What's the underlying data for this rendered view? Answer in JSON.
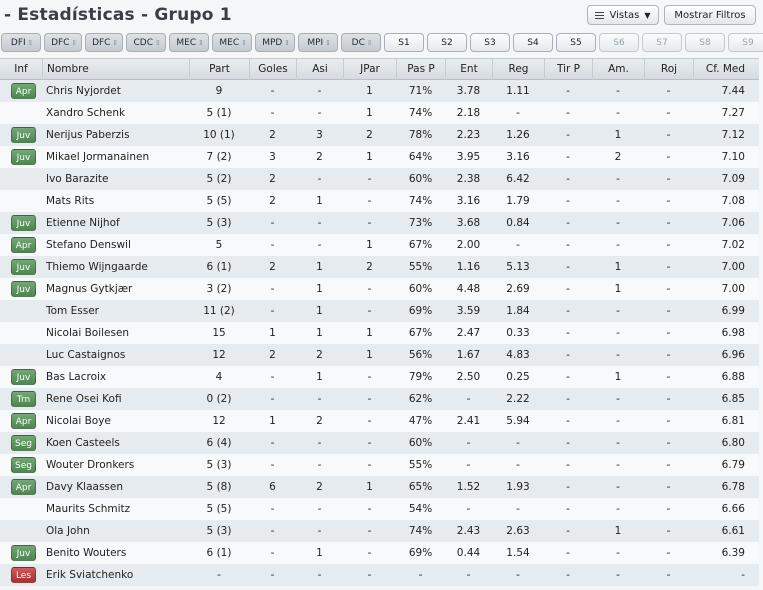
{
  "header": {
    "title": "- Estadísticas - Grupo 1",
    "views_label": "Vistas",
    "filters_label": "Mostrar Filtros"
  },
  "position_chips": [
    "DFI",
    "DFC",
    "DFC",
    "CDC",
    "MEC",
    "MEC",
    "MPD",
    "MPI",
    "DC"
  ],
  "stat_chips": [
    {
      "label": "S1",
      "dim": false
    },
    {
      "label": "S2",
      "dim": false
    },
    {
      "label": "S3",
      "dim": false
    },
    {
      "label": "S4",
      "dim": false
    },
    {
      "label": "S5",
      "dim": false
    },
    {
      "label": "S6",
      "dim": true
    },
    {
      "label": "S7",
      "dim": true
    },
    {
      "label": "S8",
      "dim": true
    },
    {
      "label": "S9",
      "dim": true
    }
  ],
  "columns": [
    "Inf",
    "Nombre",
    "Part",
    "Goles",
    "Asi",
    "JPar",
    "Pas P",
    "Ent",
    "Reg",
    "Tir P",
    "Am.",
    "Roj",
    "Cf. Med"
  ],
  "badge_colors": {
    "green": "#5a8f5c",
    "red": "#b83c3c"
  },
  "rows": [
    {
      "badge": "Apr",
      "badge_color": "green",
      "name": "Chris Nyjordet",
      "part": "9",
      "goles": "-",
      "asi": "-",
      "jpar": "1",
      "pas": "71%",
      "ent": "3.78",
      "reg": "1.11",
      "tir": "-",
      "am": "-",
      "roj": "-",
      "cf": "7.44"
    },
    {
      "badge": "",
      "badge_color": "",
      "name": "Xandro Schenk",
      "part": "5 (1)",
      "goles": "-",
      "asi": "-",
      "jpar": "1",
      "pas": "74%",
      "ent": "2.18",
      "reg": "-",
      "tir": "-",
      "am": "-",
      "roj": "-",
      "cf": "7.27"
    },
    {
      "badge": "Juv",
      "badge_color": "green",
      "name": "Nerijus Paberzis",
      "part": "10 (1)",
      "goles": "2",
      "asi": "3",
      "jpar": "2",
      "pas": "78%",
      "ent": "2.23",
      "reg": "1.26",
      "tir": "-",
      "am": "1",
      "roj": "-",
      "cf": "7.12"
    },
    {
      "badge": "Juv",
      "badge_color": "green",
      "name": "Mikael Jormanainen",
      "part": "7 (2)",
      "goles": "3",
      "asi": "2",
      "jpar": "1",
      "pas": "64%",
      "ent": "3.95",
      "reg": "3.16",
      "tir": "-",
      "am": "2",
      "roj": "-",
      "cf": "7.10"
    },
    {
      "badge": "",
      "badge_color": "",
      "name": "Ivo Barazite",
      "part": "5 (2)",
      "goles": "2",
      "asi": "-",
      "jpar": "-",
      "pas": "60%",
      "ent": "2.38",
      "reg": "6.42",
      "tir": "-",
      "am": "-",
      "roj": "-",
      "cf": "7.09"
    },
    {
      "badge": "",
      "badge_color": "",
      "name": "Mats Rits",
      "part": "5 (5)",
      "goles": "2",
      "asi": "1",
      "jpar": "-",
      "pas": "74%",
      "ent": "3.16",
      "reg": "1.79",
      "tir": "-",
      "am": "-",
      "roj": "-",
      "cf": "7.08"
    },
    {
      "badge": "Juv",
      "badge_color": "green",
      "name": "Etienne Nijhof",
      "part": "5 (3)",
      "goles": "-",
      "asi": "-",
      "jpar": "-",
      "pas": "73%",
      "ent": "3.68",
      "reg": "0.84",
      "tir": "-",
      "am": "-",
      "roj": "-",
      "cf": "7.06"
    },
    {
      "badge": "Apr",
      "badge_color": "green",
      "name": "Stefano Denswil",
      "part": "5",
      "goles": "-",
      "asi": "-",
      "jpar": "1",
      "pas": "67%",
      "ent": "2.00",
      "reg": "-",
      "tir": "-",
      "am": "-",
      "roj": "-",
      "cf": "7.02"
    },
    {
      "badge": "Juv",
      "badge_color": "green",
      "name": "Thiemo Wijngaarde",
      "part": "6 (1)",
      "goles": "2",
      "asi": "1",
      "jpar": "2",
      "pas": "55%",
      "ent": "1.16",
      "reg": "5.13",
      "tir": "-",
      "am": "1",
      "roj": "-",
      "cf": "7.00"
    },
    {
      "badge": "Juv",
      "badge_color": "green",
      "name": "Magnus Gytkjær",
      "part": "3 (2)",
      "goles": "-",
      "asi": "1",
      "jpar": "-",
      "pas": "60%",
      "ent": "4.48",
      "reg": "2.69",
      "tir": "-",
      "am": "1",
      "roj": "-",
      "cf": "7.00"
    },
    {
      "badge": "",
      "badge_color": "",
      "name": "Tom Esser",
      "part": "11 (2)",
      "goles": "-",
      "asi": "1",
      "jpar": "-",
      "pas": "69%",
      "ent": "3.59",
      "reg": "1.84",
      "tir": "-",
      "am": "-",
      "roj": "-",
      "cf": "6.99"
    },
    {
      "badge": "",
      "badge_color": "",
      "name": "Nicolai Boilesen",
      "part": "15",
      "goles": "1",
      "asi": "1",
      "jpar": "1",
      "pas": "67%",
      "ent": "2.47",
      "reg": "0.33",
      "tir": "-",
      "am": "-",
      "roj": "-",
      "cf": "6.98"
    },
    {
      "badge": "",
      "badge_color": "",
      "name": "Luc Castaignos",
      "part": "12",
      "goles": "2",
      "asi": "2",
      "jpar": "1",
      "pas": "56%",
      "ent": "1.67",
      "reg": "4.83",
      "tir": "-",
      "am": "-",
      "roj": "-",
      "cf": "6.96"
    },
    {
      "badge": "Juv",
      "badge_color": "green",
      "name": "Bas Lacroix",
      "part": "4",
      "goles": "-",
      "asi": "1",
      "jpar": "-",
      "pas": "79%",
      "ent": "2.50",
      "reg": "0.25",
      "tir": "-",
      "am": "1",
      "roj": "-",
      "cf": "6.88"
    },
    {
      "badge": "Trn",
      "badge_color": "green",
      "name": "Rene Osei Kofi",
      "part": "0 (2)",
      "goles": "-",
      "asi": "-",
      "jpar": "-",
      "pas": "62%",
      "ent": "-",
      "reg": "2.22",
      "tir": "-",
      "am": "-",
      "roj": "-",
      "cf": "6.85"
    },
    {
      "badge": "Apr",
      "badge_color": "green",
      "name": "Nicolai Boye",
      "part": "12",
      "goles": "1",
      "asi": "2",
      "jpar": "-",
      "pas": "47%",
      "ent": "2.41",
      "reg": "5.94",
      "tir": "-",
      "am": "-",
      "roj": "-",
      "cf": "6.81"
    },
    {
      "badge": "Seg",
      "badge_color": "green",
      "name": "Koen Casteels",
      "part": "6 (4)",
      "goles": "-",
      "asi": "-",
      "jpar": "-",
      "pas": "60%",
      "ent": "-",
      "reg": "-",
      "tir": "-",
      "am": "-",
      "roj": "-",
      "cf": "6.80"
    },
    {
      "badge": "Seg",
      "badge_color": "green",
      "name": "Wouter Dronkers",
      "part": "5 (3)",
      "goles": "-",
      "asi": "-",
      "jpar": "-",
      "pas": "55%",
      "ent": "-",
      "reg": "-",
      "tir": "-",
      "am": "-",
      "roj": "-",
      "cf": "6.79"
    },
    {
      "badge": "Apr",
      "badge_color": "green",
      "name": "Davy Klaassen",
      "part": "5 (8)",
      "goles": "6",
      "asi": "2",
      "jpar": "1",
      "pas": "65%",
      "ent": "1.52",
      "reg": "1.93",
      "tir": "-",
      "am": "-",
      "roj": "-",
      "cf": "6.78"
    },
    {
      "badge": "",
      "badge_color": "",
      "name": "Maurits Schmitz",
      "part": "5 (5)",
      "goles": "-",
      "asi": "-",
      "jpar": "-",
      "pas": "54%",
      "ent": "-",
      "reg": "-",
      "tir": "-",
      "am": "-",
      "roj": "-",
      "cf": "6.66"
    },
    {
      "badge": "",
      "badge_color": "",
      "name": "Ola John",
      "part": "5 (3)",
      "goles": "-",
      "asi": "-",
      "jpar": "-",
      "pas": "74%",
      "ent": "2.43",
      "reg": "2.63",
      "tir": "-",
      "am": "1",
      "roj": "-",
      "cf": "6.61"
    },
    {
      "badge": "Juv",
      "badge_color": "green",
      "name": "Benito Wouters",
      "part": "6 (1)",
      "goles": "-",
      "asi": "1",
      "jpar": "-",
      "pas": "69%",
      "ent": "0.44",
      "reg": "1.54",
      "tir": "-",
      "am": "-",
      "roj": "-",
      "cf": "6.39"
    },
    {
      "badge": "Les",
      "badge_color": "red",
      "name": "Erik Sviatchenko",
      "part": "-",
      "goles": "-",
      "asi": "-",
      "jpar": "-",
      "pas": "-",
      "ent": "-",
      "reg": "-",
      "tir": "-",
      "am": "-",
      "roj": "-",
      "cf": "-"
    }
  ]
}
